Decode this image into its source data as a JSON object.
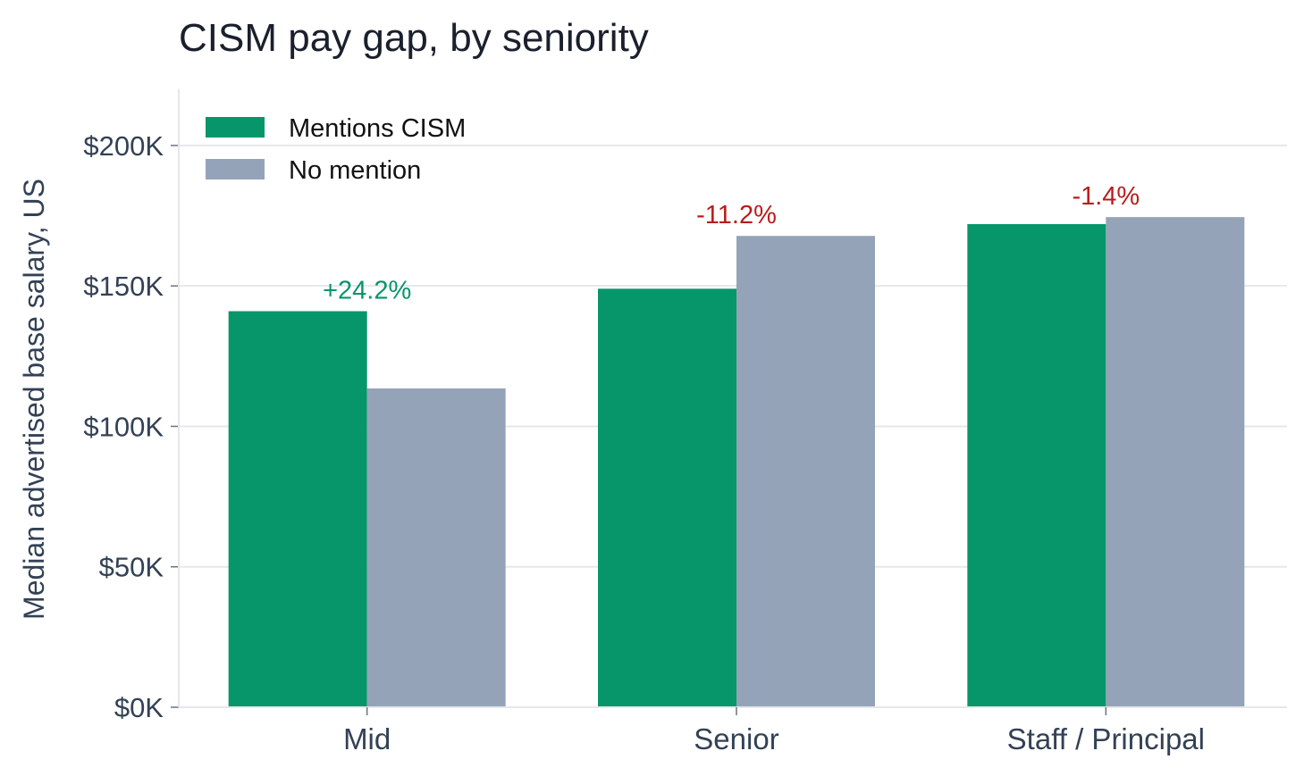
{
  "chart_data": {
    "type": "bar",
    "title": "CISM pay gap, by seniority",
    "xlabel": "",
    "ylabel": "Median advertised base salary, US",
    "ylim": [
      0,
      220000
    ],
    "yticks": [
      0,
      50000,
      100000,
      150000,
      200000
    ],
    "ytick_labels": [
      "$0K",
      "$50K",
      "$100K",
      "$150K",
      "$200K"
    ],
    "categories": [
      "Mid",
      "Senior",
      "Staff / Principal"
    ],
    "series": [
      {
        "name": "Mentions CISM",
        "color": "#069669",
        "values": [
          141000,
          149000,
          172000
        ]
      },
      {
        "name": "No mention",
        "color": "#94a3b8",
        "values": [
          113500,
          167800,
          174500
        ]
      }
    ],
    "annotations": [
      {
        "category": "Mid",
        "text": "+24.2%",
        "color": "#069669"
      },
      {
        "category": "Senior",
        "text": "-11.2%",
        "color": "#b91c1c"
      },
      {
        "category": "Staff / Principal",
        "text": "-1.4%",
        "color": "#b91c1c"
      }
    ],
    "grid": "horizontal",
    "legend_position": "top-left"
  }
}
